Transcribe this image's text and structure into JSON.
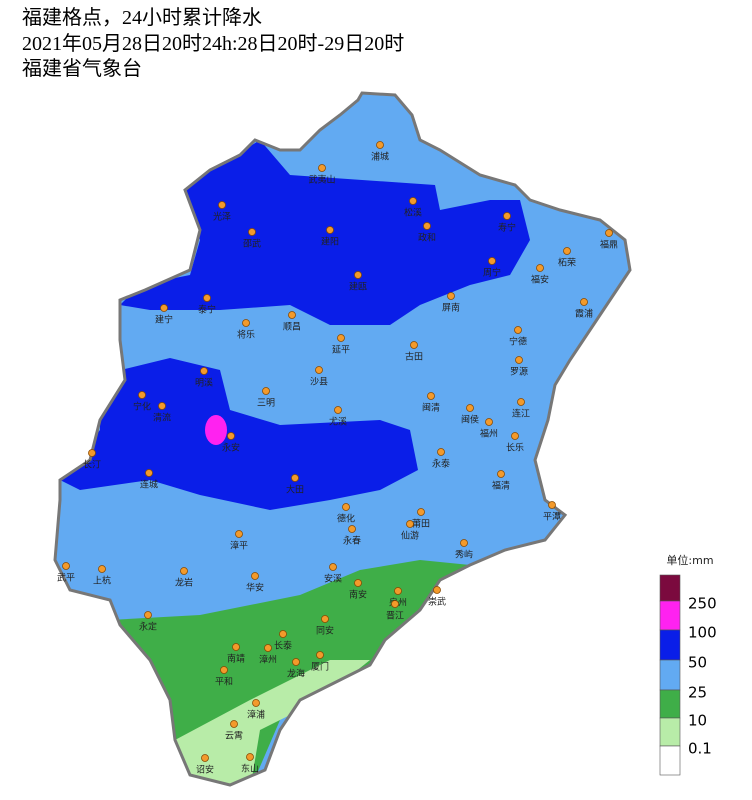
{
  "header": {
    "title": "福建格点，24小时累计降水",
    "period": "2021年05月28日20时24h:28日20时-29日20时",
    "source": "福建省气象台"
  },
  "cities": [
    "浦城",
    "武夷山",
    "光泽",
    "松溪",
    "寿宁",
    "政和",
    "建阳",
    "邵武",
    "福鼎",
    "柘荣",
    "周宁",
    "福安",
    "建瓯",
    "泰宁",
    "建宁",
    "屏南",
    "霞浦",
    "将乐",
    "顺昌",
    "宁德",
    "延平",
    "古田",
    "罗源",
    "明溪",
    "沙县",
    "三明",
    "宁化",
    "清流",
    "闽清",
    "闽侯",
    "连江",
    "尤溪",
    "福州",
    "永安",
    "长乐",
    "永泰",
    "长汀",
    "连城",
    "大田",
    "福清",
    "平潭",
    "德化",
    "莆田",
    "仙游",
    "永春",
    "漳平",
    "秀屿",
    "武平",
    "上杭",
    "龙岩",
    "华安",
    "安溪",
    "南安",
    "泉州",
    "崇武",
    "晋江",
    "永定",
    "同安",
    "长泰",
    "南靖",
    "漳州",
    "龙海",
    "厦门",
    "平和",
    "漳浦",
    "云霄",
    "诏安",
    "东山"
  ],
  "legend": {
    "unit": "单位:mm",
    "labels": [
      250,
      100,
      50,
      25,
      10,
      0.1
    ],
    "colors": [
      "#7b0a3e",
      "#ff22f0",
      "#0a1ee8",
      "#62aaf2",
      "#3fae48",
      "#b8eca8",
      "#ffffff"
    ]
  }
}
